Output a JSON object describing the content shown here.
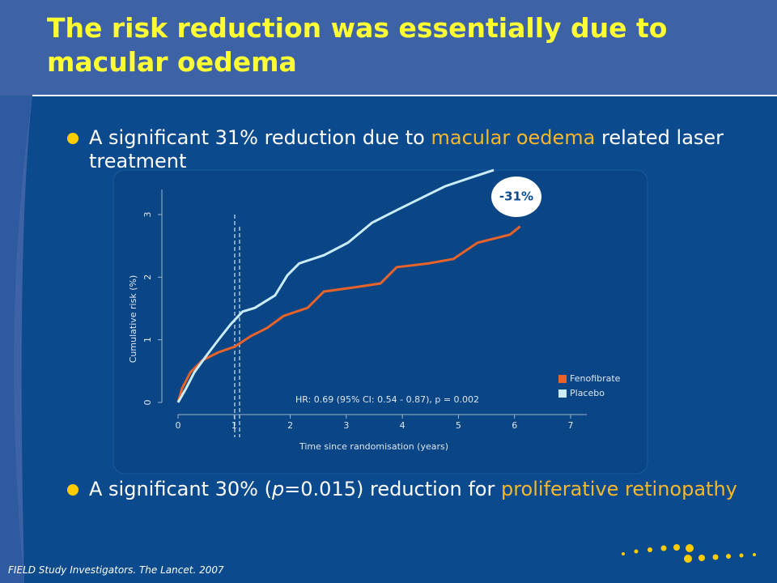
{
  "title": "The risk reduction was essentially due to macular oedema",
  "bullets": [
    {
      "parts": [
        "A significant 31% reduction due to ",
        "macular oedema",
        " related laser treatment"
      ]
    },
    {
      "parts": [
        "A significant 30% (",
        "p",
        "=0.015) reduction for ",
        "proliferative retinopathy"
      ]
    }
  ],
  "footer": "FIELD Study Investigators. The Lancet. 2007",
  "chart_data": {
    "type": "line",
    "xlabel": "Time since randomisation (years)",
    "ylabel": "Cumulative risk (%)",
    "xlim": [
      0,
      7
    ],
    "ylim": [
      0,
      3.4
    ],
    "xticks": [
      0,
      1,
      2,
      3,
      4,
      5,
      6,
      7
    ],
    "yticks": [
      0,
      1,
      2,
      3
    ],
    "legend": "lower right",
    "annotations": [
      "-31%",
      "HR: 0.69 (95% CI: 0.54 - 0.87), p = 0.002"
    ],
    "series": [
      {
        "name": "Fenofibrate",
        "color": "#e8632a",
        "x": [
          0,
          0.07,
          0.22,
          0.43,
          0.72,
          1.01,
          1.3,
          1.59,
          1.88,
          2.31,
          2.6,
          3.17,
          3.61,
          3.9,
          4.47,
          4.91,
          5.34,
          5.92,
          6.1
        ],
        "values": [
          0,
          0.22,
          0.48,
          0.67,
          0.8,
          0.89,
          1.06,
          1.19,
          1.38,
          1.51,
          1.77,
          1.84,
          1.9,
          2.16,
          2.22,
          2.29,
          2.55,
          2.68,
          2.81
        ]
      },
      {
        "name": "Placebo",
        "color": "#c9ecf8",
        "x": [
          0,
          0.14,
          0.29,
          0.5,
          0.72,
          0.94,
          1.15,
          1.37,
          1.73,
          1.95,
          2.16,
          2.6,
          3.03,
          3.46,
          3.9,
          4.33,
          4.76,
          5.19,
          5.63
        ],
        "values": [
          0,
          0.22,
          0.48,
          0.74,
          1.0,
          1.25,
          1.45,
          1.51,
          1.71,
          2.03,
          2.22,
          2.35,
          2.55,
          2.87,
          3.07,
          3.26,
          3.45,
          3.58,
          3.71
        ]
      }
    ]
  }
}
